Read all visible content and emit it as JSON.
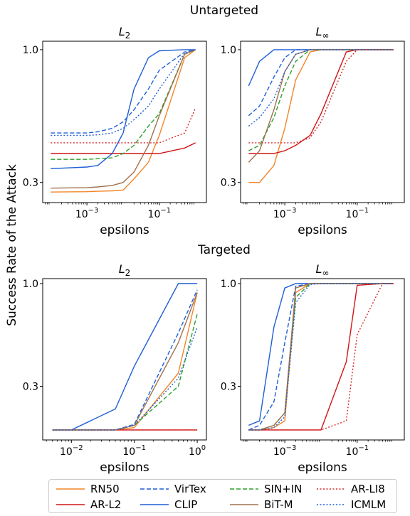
{
  "figure": {
    "ylabel": "Success Rate of the Attack",
    "legend": [
      {
        "name": "RN50",
        "color": "#f28527",
        "dash": "solid"
      },
      {
        "name": "VirTex",
        "color": "#1f5fd6",
        "dash": "dashed"
      },
      {
        "name": "SIN+IN",
        "color": "#2ca02c",
        "dash": "dashed"
      },
      {
        "name": "AR-LI8",
        "color": "#d62728",
        "dash": "dotted"
      },
      {
        "name": "AR-L2",
        "color": "#d01515",
        "dash": "solid"
      },
      {
        "name": "CLIP",
        "color": "#1f5fd6",
        "dash": "solid"
      },
      {
        "name": "BiT-M",
        "color": "#a0714f",
        "dash": "solid"
      },
      {
        "name": "ICMLM",
        "color": "#1f5fd6",
        "dash": "dotted"
      }
    ]
  },
  "chart_data": [
    {
      "type": "line",
      "group_title": "Untargeted",
      "title": "L2",
      "title_sub": "2",
      "xlabel": "epsilons",
      "xscale": "log",
      "xlim": [
        6e-05,
        2
      ],
      "xticks": [
        {
          "v": 0.001,
          "label": "10^-3"
        },
        {
          "v": 0.1,
          "label": "10^-1"
        }
      ],
      "yscale": "log",
      "ylim": [
        0.25,
        1.08
      ],
      "yticks": [
        {
          "v": 1.0,
          "label": "1.0"
        },
        {
          "v": 0.3,
          "label": "0.3"
        }
      ],
      "x": [
        0.0001,
        0.001,
        0.002,
        0.005,
        0.01,
        0.02,
        0.05,
        0.1,
        0.5,
        1
      ],
      "series": [
        {
          "name": "RN50",
          "values": [
            0.275,
            0.276,
            0.277,
            0.278,
            0.28,
            0.31,
            0.36,
            0.46,
            0.93,
            1.0
          ]
        },
        {
          "name": "AR-L2",
          "values": [
            0.39,
            0.39,
            0.39,
            0.39,
            0.39,
            0.39,
            0.39,
            0.39,
            0.41,
            0.43
          ]
        },
        {
          "name": "CLIP",
          "values": [
            0.34,
            0.345,
            0.35,
            0.39,
            0.47,
            0.7,
            0.93,
            0.99,
            1.0,
            1.0
          ]
        },
        {
          "name": "VirTex",
          "values": [
            0.47,
            0.47,
            0.475,
            0.49,
            0.52,
            0.58,
            0.7,
            0.83,
            0.98,
            1.0
          ]
        },
        {
          "name": "SIN+IN",
          "values": [
            0.37,
            0.37,
            0.372,
            0.375,
            0.39,
            0.42,
            0.5,
            0.56,
            0.96,
            1.0
          ]
        },
        {
          "name": "BiT-M",
          "values": [
            0.285,
            0.286,
            0.288,
            0.292,
            0.3,
            0.33,
            0.42,
            0.55,
            0.96,
            1.0
          ]
        },
        {
          "name": "AR-LI8",
          "values": [
            0.43,
            0.43,
            0.43,
            0.43,
            0.43,
            0.43,
            0.43,
            0.43,
            0.47,
            0.59
          ]
        },
        {
          "name": "ICMLM",
          "values": [
            0.46,
            0.46,
            0.462,
            0.47,
            0.49,
            0.53,
            0.6,
            0.7,
            0.97,
            1.0
          ]
        }
      ]
    },
    {
      "type": "line",
      "group_title": "Untargeted",
      "title": "L",
      "title_sub": "∞",
      "xlabel": "epsilons",
      "xscale": "log",
      "xlim": [
        6e-05,
        2
      ],
      "xticks": [
        {
          "v": 0.001,
          "label": "10^-3"
        },
        {
          "v": 0.1,
          "label": "10^-1"
        }
      ],
      "yscale": "log",
      "ylim": [
        0.25,
        1.08
      ],
      "yticks": [
        {
          "v": 1.0,
          "label": "1.0"
        },
        {
          "v": 0.3,
          "label": "0.3"
        }
      ],
      "x": [
        0.0001,
        0.0002,
        0.0005,
        0.001,
        0.002,
        0.005,
        0.01,
        0.05,
        0.1,
        0.5,
        1
      ],
      "series": [
        {
          "name": "RN50",
          "values": [
            0.3,
            0.3,
            0.35,
            0.49,
            0.76,
            0.98,
            1.0,
            1.0,
            1.0,
            1.0,
            1.0
          ]
        },
        {
          "name": "AR-L2",
          "values": [
            0.39,
            0.39,
            0.39,
            0.4,
            0.42,
            0.46,
            0.56,
            0.98,
            1.0,
            1.0,
            1.0
          ]
        },
        {
          "name": "CLIP",
          "values": [
            0.72,
            0.9,
            1.0,
            1.0,
            1.0,
            1.0,
            1.0,
            1.0,
            1.0,
            1.0,
            1.0
          ]
        },
        {
          "name": "VirTex",
          "values": [
            0.55,
            0.6,
            0.78,
            0.93,
            1.0,
            1.0,
            1.0,
            1.0,
            1.0,
            1.0,
            1.0
          ]
        },
        {
          "name": "SIN+IN",
          "values": [
            0.4,
            0.42,
            0.54,
            0.72,
            0.9,
            1.0,
            1.0,
            1.0,
            1.0,
            1.0,
            1.0
          ]
        },
        {
          "name": "BiT-M",
          "values": [
            0.36,
            0.4,
            0.58,
            0.82,
            0.96,
            1.0,
            1.0,
            1.0,
            1.0,
            1.0,
            1.0
          ]
        },
        {
          "name": "AR-LI8",
          "values": [
            0.43,
            0.43,
            0.43,
            0.43,
            0.43,
            0.45,
            0.52,
            0.9,
            1.0,
            1.0,
            1.0
          ]
        },
        {
          "name": "ICMLM",
          "values": [
            0.5,
            0.54,
            0.64,
            0.82,
            0.96,
            1.0,
            1.0,
            1.0,
            1.0,
            1.0,
            1.0
          ]
        }
      ]
    },
    {
      "type": "line",
      "group_title": "Targeted",
      "title": "L2",
      "title_sub": "2",
      "xlabel": "epsilons",
      "xscale": "log",
      "xlim": [
        0.0035,
        1.4
      ],
      "xticks": [
        {
          "v": 0.01,
          "label": "10^-2"
        },
        {
          "v": 0.1,
          "label": "10^-1"
        },
        {
          "v": 1,
          "label": "10^0"
        }
      ],
      "yscale": "log",
      "ylim": [
        0.16,
        1.06
      ],
      "yticks": [
        {
          "v": 1.0,
          "label": "1.0"
        },
        {
          "v": 0.3,
          "label": "0.3"
        }
      ],
      "x": [
        0.005,
        0.01,
        0.05,
        0.1,
        0.5,
        1
      ],
      "series": [
        {
          "name": "RN50",
          "values": [
            0.18,
            0.18,
            0.18,
            0.185,
            0.35,
            0.9
          ]
        },
        {
          "name": "AR-L2",
          "values": [
            0.18,
            0.18,
            0.18,
            0.18,
            0.18,
            0.18
          ]
        },
        {
          "name": "CLIP",
          "values": [
            0.18,
            0.18,
            0.23,
            0.38,
            1.0,
            1.0
          ]
        },
        {
          "name": "VirTex",
          "values": [
            0.18,
            0.18,
            0.18,
            0.192,
            0.56,
            0.93
          ]
        },
        {
          "name": "SIN+IN",
          "values": [
            0.18,
            0.18,
            0.18,
            0.19,
            0.3,
            0.7
          ]
        },
        {
          "name": "BiT-M",
          "values": [
            0.18,
            0.18,
            0.18,
            0.19,
            0.5,
            0.9
          ]
        },
        {
          "name": "AR-LI8",
          "values": [
            0.18,
            0.18,
            0.18,
            0.18,
            0.18,
            0.18
          ]
        },
        {
          "name": "ICMLM",
          "values": [
            0.18,
            0.18,
            0.18,
            0.19,
            0.33,
            0.6
          ]
        }
      ]
    },
    {
      "type": "line",
      "group_title": "Targeted",
      "title": "L",
      "title_sub": "∞",
      "xlabel": "epsilons",
      "xscale": "log",
      "xlim": [
        6e-05,
        2
      ],
      "xticks": [
        {
          "v": 0.001,
          "label": "10^-3"
        },
        {
          "v": 0.1,
          "label": "10^-1"
        }
      ],
      "yscale": "log",
      "ylim": [
        0.16,
        1.06
      ],
      "yticks": [
        {
          "v": 1.0,
          "label": "1.0"
        },
        {
          "v": 0.3,
          "label": "0.3"
        }
      ],
      "x": [
        0.0001,
        0.0002,
        0.0005,
        0.001,
        0.002,
        0.005,
        0.01,
        0.05,
        0.1,
        0.5,
        1
      ],
      "series": [
        {
          "name": "RN50",
          "values": [
            0.18,
            0.18,
            0.185,
            0.2,
            0.9,
            1.0,
            1.0,
            1.0,
            1.0,
            1.0,
            1.0
          ]
        },
        {
          "name": "AR-L2",
          "values": [
            0.18,
            0.18,
            0.18,
            0.18,
            0.18,
            0.18,
            0.18,
            0.4,
            0.98,
            1.0,
            1.0
          ]
        },
        {
          "name": "CLIP",
          "values": [
            0.19,
            0.2,
            0.6,
            0.95,
            1.0,
            1.0,
            1.0,
            1.0,
            1.0,
            1.0,
            1.0
          ]
        },
        {
          "name": "VirTex",
          "values": [
            0.18,
            0.19,
            0.25,
            0.5,
            0.97,
            1.0,
            1.0,
            1.0,
            1.0,
            1.0,
            1.0
          ]
        },
        {
          "name": "SIN+IN",
          "values": [
            0.18,
            0.18,
            0.19,
            0.22,
            0.85,
            1.0,
            1.0,
            1.0,
            1.0,
            1.0,
            1.0
          ]
        },
        {
          "name": "BiT-M",
          "values": [
            0.18,
            0.18,
            0.19,
            0.22,
            0.95,
            1.0,
            1.0,
            1.0,
            1.0,
            1.0,
            1.0
          ]
        },
        {
          "name": "AR-LI8",
          "values": [
            0.18,
            0.18,
            0.18,
            0.18,
            0.18,
            0.18,
            0.18,
            0.2,
            0.55,
            1.0,
            1.0
          ]
        },
        {
          "name": "ICMLM",
          "values": [
            0.18,
            0.18,
            0.185,
            0.21,
            0.8,
            0.99,
            1.0,
            1.0,
            1.0,
            1.0,
            1.0
          ]
        }
      ]
    }
  ]
}
